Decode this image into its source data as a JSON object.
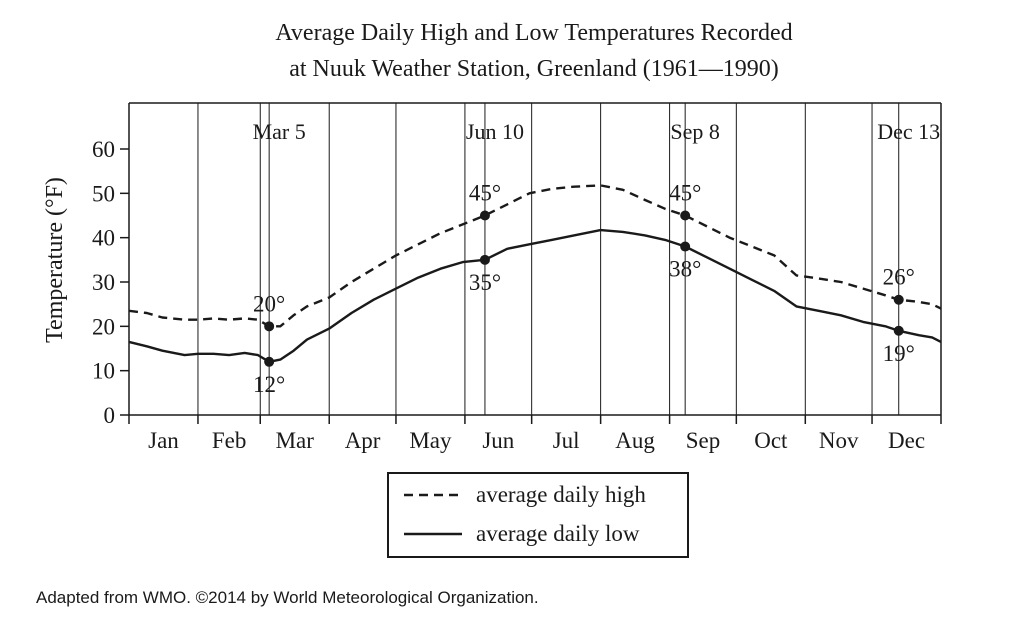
{
  "chart_data": {
    "type": "line",
    "title_line1": "Average Daily High and Low Temperatures Recorded",
    "title_line2": "at Nuuk Weather Station, Greenland (1961—1990)",
    "ylabel": "Temperature (°F)",
    "xlabel": "",
    "ylim": [
      0,
      60
    ],
    "yticks": [
      "0",
      "10",
      "20",
      "30",
      "40",
      "50",
      "60"
    ],
    "months": [
      "Jan",
      "Feb",
      "Mar",
      "Apr",
      "May",
      "Jun",
      "Jul",
      "Aug",
      "Sep",
      "Oct",
      "Nov",
      "Dec"
    ],
    "x_unit": "day of year (Jan 1 = 0, 365 = Dec 31)",
    "marked_dates": [
      {
        "label": "Mar 5",
        "day": 63
      },
      {
        "label": "Jun 10",
        "day": 160
      },
      {
        "label": "Sep 8",
        "day": 250
      },
      {
        "label": "Dec 13",
        "day": 346
      }
    ],
    "series": [
      {
        "name": "average daily high",
        "style": "dashed",
        "points": [
          [
            0,
            23.5
          ],
          [
            8,
            23
          ],
          [
            15,
            22
          ],
          [
            25,
            21.5
          ],
          [
            31,
            21.5
          ],
          [
            38,
            21.8
          ],
          [
            45,
            21.5
          ],
          [
            52,
            21.8
          ],
          [
            58,
            21.5
          ],
          [
            63,
            20
          ],
          [
            68,
            20
          ],
          [
            74,
            22.5
          ],
          [
            80,
            24.5
          ],
          [
            90,
            26.5
          ],
          [
            100,
            30
          ],
          [
            110,
            33
          ],
          [
            120,
            36
          ],
          [
            130,
            38.5
          ],
          [
            140,
            41
          ],
          [
            150,
            43
          ],
          [
            160,
            45
          ],
          [
            170,
            47.5
          ],
          [
            180,
            50
          ],
          [
            190,
            51
          ],
          [
            200,
            51.5
          ],
          [
            212,
            51.8
          ],
          [
            222,
            50.8
          ],
          [
            232,
            48.5
          ],
          [
            241,
            46.5
          ],
          [
            250,
            45
          ],
          [
            260,
            42.5
          ],
          [
            270,
            40
          ],
          [
            280,
            38
          ],
          [
            290,
            36
          ],
          [
            300,
            31.5
          ],
          [
            310,
            30.8
          ],
          [
            320,
            30
          ],
          [
            330,
            28.5
          ],
          [
            340,
            27
          ],
          [
            346,
            26
          ],
          [
            355,
            25.5
          ],
          [
            361,
            25
          ],
          [
            365,
            24
          ]
        ]
      },
      {
        "name": "average daily low",
        "style": "solid",
        "points": [
          [
            0,
            16.5
          ],
          [
            8,
            15.5
          ],
          [
            15,
            14.5
          ],
          [
            25,
            13.5
          ],
          [
            31,
            13.8
          ],
          [
            38,
            13.8
          ],
          [
            45,
            13.5
          ],
          [
            52,
            14
          ],
          [
            58,
            13.5
          ],
          [
            63,
            12
          ],
          [
            68,
            12.5
          ],
          [
            74,
            14.5
          ],
          [
            80,
            17
          ],
          [
            90,
            19.5
          ],
          [
            100,
            23
          ],
          [
            110,
            26
          ],
          [
            120,
            28.5
          ],
          [
            130,
            31
          ],
          [
            140,
            33
          ],
          [
            150,
            34.5
          ],
          [
            160,
            35
          ],
          [
            170,
            37.5
          ],
          [
            180,
            38.5
          ],
          [
            190,
            39.5
          ],
          [
            200,
            40.5
          ],
          [
            212,
            41.7
          ],
          [
            222,
            41.3
          ],
          [
            232,
            40.5
          ],
          [
            241,
            39.5
          ],
          [
            250,
            38
          ],
          [
            260,
            35.5
          ],
          [
            270,
            33
          ],
          [
            280,
            30.5
          ],
          [
            290,
            28
          ],
          [
            300,
            24.5
          ],
          [
            310,
            23.5
          ],
          [
            320,
            22.5
          ],
          [
            330,
            21
          ],
          [
            340,
            20
          ],
          [
            346,
            19
          ],
          [
            355,
            18
          ],
          [
            361,
            17.5
          ],
          [
            365,
            16.5
          ]
        ]
      }
    ],
    "highlighted_points": [
      {
        "series": "average daily high",
        "date": "Mar 5",
        "day": 63,
        "value": 20,
        "label": "20°",
        "label_pos": "above"
      },
      {
        "series": "average daily low",
        "date": "Mar 5",
        "day": 63,
        "value": 12,
        "label": "12°",
        "label_pos": "below"
      },
      {
        "series": "average daily high",
        "date": "Jun 10",
        "day": 160,
        "value": 45,
        "label": "45°",
        "label_pos": "above"
      },
      {
        "series": "average daily low",
        "date": "Jun 10",
        "day": 160,
        "value": 35,
        "label": "35°",
        "label_pos": "below"
      },
      {
        "series": "average daily high",
        "date": "Sep 8",
        "day": 250,
        "value": 45,
        "label": "45°",
        "label_pos": "above"
      },
      {
        "series": "average daily low",
        "date": "Sep 8",
        "day": 250,
        "value": 38,
        "label": "38°",
        "label_pos": "below"
      },
      {
        "series": "average daily high",
        "date": "Dec 13",
        "day": 346,
        "value": 26,
        "label": "26°",
        "label_pos": "above"
      },
      {
        "series": "average daily low",
        "date": "Dec 13",
        "day": 346,
        "value": 19,
        "label": "19°",
        "label_pos": "below"
      }
    ],
    "legend": [
      {
        "label": "average daily high",
        "style": "dashed"
      },
      {
        "label": "average daily low",
        "style": "solid"
      }
    ],
    "legend_placement": "bottom-center",
    "grid": "vertical month dividers only"
  },
  "source": "Adapted from WMO. ©2014 by World Meteorological Organization."
}
